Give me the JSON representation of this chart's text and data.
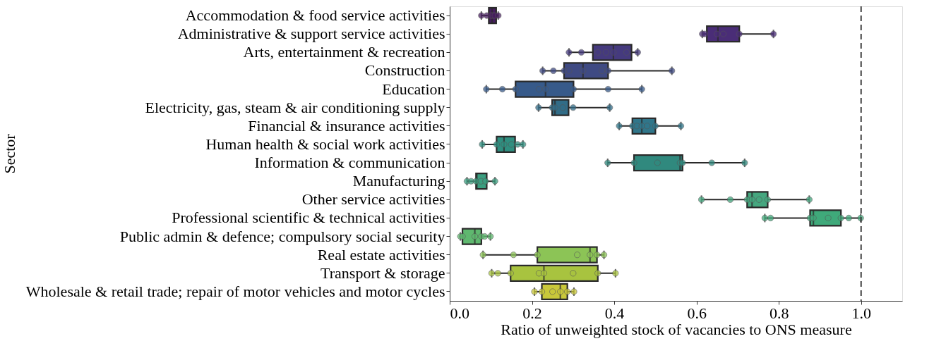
{
  "chart_data": {
    "type": "box",
    "orientation": "horizontal",
    "ylabel": "Sector",
    "xlabel": "Ratio of unweighted stock of vacancies to ONS measure",
    "categories": [
      "Accommodation & food service activities",
      "Administrative & support service activities",
      "Arts, entertainment & recreation",
      "Construction",
      "Education",
      "Electricity, gas, steam & air conditioning supply",
      "Financial & insurance activities",
      "Human health & social work activities",
      "Information & communication",
      "Manufacturing",
      "Other service activities",
      "Professional scientific & technical activities",
      "Public admin & defence; compulsory social security",
      "Real estate activities",
      "Transport & storage",
      "Wholesale & retail trade; repair of motor vehicles and motor cycles"
    ],
    "xlim": [
      0,
      1.1
    ],
    "xticks": [
      {
        "value": 0,
        "label": "0.0"
      },
      {
        "value": 0.2,
        "label": "0.2"
      },
      {
        "value": 0.4,
        "label": "0.4"
      },
      {
        "value": 0.6,
        "label": "0.6"
      },
      {
        "value": 0.8,
        "label": "0.8"
      },
      {
        "value": 1,
        "label": "1.0"
      }
    ],
    "grid": false,
    "series": [
      {
        "colors": [
          "#461d5f",
          "#4a2d77",
          "#453a7e",
          "#3f4a83",
          "#375a8a",
          "#316c87",
          "#30768a",
          "#2f8f80",
          "#30897e",
          "#3a9e7f",
          "#45a77f",
          "#3fa97a",
          "#5fb86f",
          "#8cc456",
          "#a8c33f",
          "#c9c83a"
        ],
        "boxes": [
          {
            "low": 0.077,
            "q1": 0.095,
            "median": 0.103,
            "q3": 0.113,
            "high": 0.118
          },
          {
            "low": 0.614,
            "q1": 0.625,
            "median": 0.652,
            "q3": 0.704,
            "high": 0.787
          },
          {
            "low": 0.29,
            "q1": 0.348,
            "median": 0.398,
            "q3": 0.442,
            "high": 0.457
          },
          {
            "low": 0.226,
            "q1": 0.278,
            "median": 0.324,
            "q3": 0.385,
            "high": 0.54
          },
          {
            "low": 0.089,
            "q1": 0.16,
            "median": 0.233,
            "q3": 0.301,
            "high": 0.467
          },
          {
            "low": 0.216,
            "q1": 0.249,
            "median": 0.256,
            "q3": 0.289,
            "high": 0.389
          },
          {
            "low": 0.412,
            "q1": 0.444,
            "median": 0.467,
            "q3": 0.5,
            "high": 0.562
          },
          {
            "low": 0.079,
            "q1": 0.114,
            "median": 0.132,
            "q3": 0.159,
            "high": 0.178
          },
          {
            "low": 0.384,
            "q1": 0.448,
            "median": 0.56,
            "q3": 0.566,
            "high": 0.717
          },
          {
            "low": 0.042,
            "q1": 0.064,
            "median": 0.066,
            "q3": 0.09,
            "high": 0.11
          },
          {
            "low": 0.612,
            "q1": 0.723,
            "median": 0.735,
            "q3": 0.773,
            "high": 0.874
          },
          {
            "low": 0.766,
            "q1": 0.876,
            "median": 0.884,
            "q3": 0.951,
            "high": 0.999
          },
          {
            "low": 0.026,
            "q1": 0.031,
            "median": 0.061,
            "q3": 0.077,
            "high": 0.099
          },
          {
            "low": 0.081,
            "q1": 0.213,
            "median": 0.341,
            "q3": 0.358,
            "high": 0.375
          },
          {
            "low": 0.102,
            "q1": 0.148,
            "median": 0.229,
            "q3": 0.36,
            "high": 0.403
          },
          {
            "low": 0.206,
            "q1": 0.224,
            "median": 0.269,
            "q3": 0.286,
            "high": 0.302
          }
        ]
      },
      {
        "type": "scatter",
        "colors": [
          "#461d5f",
          "#461d5f",
          "#461d5f",
          "#461d5f",
          "#461d5f",
          "#461d5f",
          "#4a2d77",
          "#4a2d77",
          "#4a2d77",
          "#4a2d77",
          "#4a2d77",
          "#4a2d77",
          "#453a7e",
          "#453a7e",
          "#453a7e",
          "#453a7e",
          "#453a7e",
          "#453a7e",
          "#453a7e",
          "#3f4a83",
          "#3f4a83",
          "#3f4a83",
          "#3f4a83",
          "#3f4a83",
          "#3f4a83",
          "#3f4a83",
          "#3f4a83",
          "#375a8a",
          "#375a8a",
          "#375a8a",
          "#375a8a",
          "#375a8a",
          "#375a8a",
          "#375a8a",
          "#375a8a",
          "#316c87",
          "#316c87",
          "#316c87",
          "#316c87",
          "#316c87",
          "#316c87",
          "#30768a",
          "#30768a",
          "#30768a",
          "#30768a",
          "#30768a",
          "#30768a",
          "#30768a",
          "#2f8f80",
          "#2f8f80",
          "#2f8f80",
          "#2f8f80",
          "#2f8f80",
          "#2f8f80",
          "#30897e",
          "#30897e",
          "#30897e",
          "#30897e",
          "#30897e",
          "#30897e",
          "#30897e",
          "#3a9e7f",
          "#3a9e7f",
          "#3a9e7f",
          "#3a9e7f",
          "#3a9e7f",
          "#3a9e7f",
          "#45a77f",
          "#45a77f",
          "#45a77f",
          "#45a77f",
          "#45a77f",
          "#45a77f",
          "#45a77f",
          "#3fa97a",
          "#3fa97a",
          "#3fa97a",
          "#3fa97a",
          "#3fa97a",
          "#3fa97a",
          "#3fa97a",
          "#3fa97a",
          "#5fb86f",
          "#5fb86f",
          "#5fb86f",
          "#5fb86f",
          "#5fb86f",
          "#5fb86f",
          "#8cc456",
          "#8cc456",
          "#8cc456",
          "#8cc456",
          "#8cc456",
          "#8cc456",
          "#8cc456",
          "#a8c33f",
          "#a8c33f",
          "#a8c33f",
          "#a8c33f",
          "#a8c33f",
          "#a8c33f",
          "#a8c33f",
          "#a8c33f",
          "#c9c83a",
          "#c9c83a",
          "#c9c83a",
          "#c9c83a",
          "#c9c83a",
          "#c9c83a"
        ],
        "x": [
          "Accommodation & food service activities",
          "Accommodation & food service activities",
          "Accommodation & food service activities",
          "Accommodation & food service activities",
          "Accommodation & food service activities",
          "Accommodation & food service activities",
          "Administrative & support service activities",
          "Administrative & support service activities",
          "Administrative & support service activities",
          "Administrative & support service activities",
          "Administrative & support service activities",
          "Administrative & support service activities",
          "Arts, entertainment & recreation",
          "Arts, entertainment & recreation",
          "Arts, entertainment & recreation",
          "Arts, entertainment & recreation",
          "Arts, entertainment & recreation",
          "Arts, entertainment & recreation",
          "Arts, entertainment & recreation",
          "Construction",
          "Construction",
          "Construction",
          "Construction",
          "Construction",
          "Construction",
          "Construction",
          "Construction",
          "Education",
          "Education",
          "Education",
          "Education",
          "Education",
          "Education",
          "Education",
          "Education",
          "Electricity, gas, steam & air conditioning supply",
          "Electricity, gas, steam & air conditioning supply",
          "Electricity, gas, steam & air conditioning supply",
          "Electricity, gas, steam & air conditioning supply",
          "Electricity, gas, steam & air conditioning supply",
          "Electricity, gas, steam & air conditioning supply",
          "Financial & insurance activities",
          "Financial & insurance activities",
          "Financial & insurance activities",
          "Financial & insurance activities",
          "Financial & insurance activities",
          "Financial & insurance activities",
          "Financial & insurance activities",
          "Human health & social work activities",
          "Human health & social work activities",
          "Human health & social work activities",
          "Human health & social work activities",
          "Human health & social work activities",
          "Human health & social work activities",
          "Information & communication",
          "Information & communication",
          "Information & communication",
          "Information & communication",
          "Information & communication",
          "Information & communication",
          "Information & communication",
          "Manufacturing",
          "Manufacturing",
          "Manufacturing",
          "Manufacturing",
          "Manufacturing",
          "Manufacturing",
          "Other service activities",
          "Other service activities",
          "Other service activities",
          "Other service activities",
          "Other service activities",
          "Other service activities",
          "Other service activities",
          "Professional scientific & technical activities",
          "Professional scientific & technical activities",
          "Professional scientific & technical activities",
          "Professional scientific & technical activities",
          "Professional scientific & technical activities",
          "Professional scientific & technical activities",
          "Professional scientific & technical activities",
          "Professional scientific & technical activities",
          "Public admin & defence; compulsory social security",
          "Public admin & defence; compulsory social security",
          "Public admin & defence; compulsory social security",
          "Public admin & defence; compulsory social security",
          "Public admin & defence; compulsory social security",
          "Public admin & defence; compulsory social security",
          "Real estate activities",
          "Real estate activities",
          "Real estate activities",
          "Real estate activities",
          "Real estate activities",
          "Real estate activities",
          "Real estate activities",
          "Transport & storage",
          "Transport & storage",
          "Transport & storage",
          "Transport & storage",
          "Transport & storage",
          "Transport & storage",
          "Transport & storage",
          "Transport & storage",
          "Wholesale & retail trade; repair of motor vehicles and motor cycles",
          "Wholesale & retail trade; repair of motor vehicles and motor cycles",
          "Wholesale & retail trade; repair of motor vehicles and motor cycles",
          "Wholesale & retail trade; repair of motor vehicles and motor cycles",
          "Wholesale & retail trade; repair of motor vehicles and motor cycles",
          "Wholesale & retail trade; repair of motor vehicles and motor cycles"
        ],
        "values": [
          0.077,
          0.09,
          0.1,
          0.105,
          0.11,
          0.118,
          0.614,
          0.62,
          0.65,
          0.665,
          0.704,
          0.787,
          0.29,
          0.32,
          0.36,
          0.38,
          0.398,
          0.43,
          0.457,
          0.226,
          0.252,
          0.278,
          0.29,
          0.324,
          0.37,
          0.385,
          0.54,
          0.089,
          0.128,
          0.16,
          0.217,
          0.233,
          0.301,
          0.385,
          0.467,
          0.216,
          0.249,
          0.256,
          0.275,
          0.3,
          0.389,
          0.412,
          0.444,
          0.455,
          0.467,
          0.48,
          0.5,
          0.562,
          0.079,
          0.114,
          0.132,
          0.15,
          0.165,
          0.178,
          0.384,
          0.448,
          0.505,
          0.56,
          0.566,
          0.637,
          0.717,
          0.042,
          0.052,
          0.064,
          0.076,
          0.087,
          0.11,
          0.612,
          0.682,
          0.723,
          0.735,
          0.752,
          0.773,
          0.874,
          0.766,
          0.78,
          0.876,
          0.884,
          0.92,
          0.951,
          0.97,
          0.999,
          0.026,
          0.031,
          0.061,
          0.077,
          0.085,
          0.099,
          0.081,
          0.155,
          0.213,
          0.31,
          0.341,
          0.358,
          0.375,
          0.102,
          0.117,
          0.148,
          0.217,
          0.229,
          0.3,
          0.36,
          0.403,
          0.206,
          0.224,
          0.25,
          0.269,
          0.286,
          0.302
        ]
      }
    ],
    "ref_lines": [
      {
        "axis": "x",
        "value": 1.0,
        "line_style": "dashed",
        "color": "#404040"
      }
    ]
  }
}
